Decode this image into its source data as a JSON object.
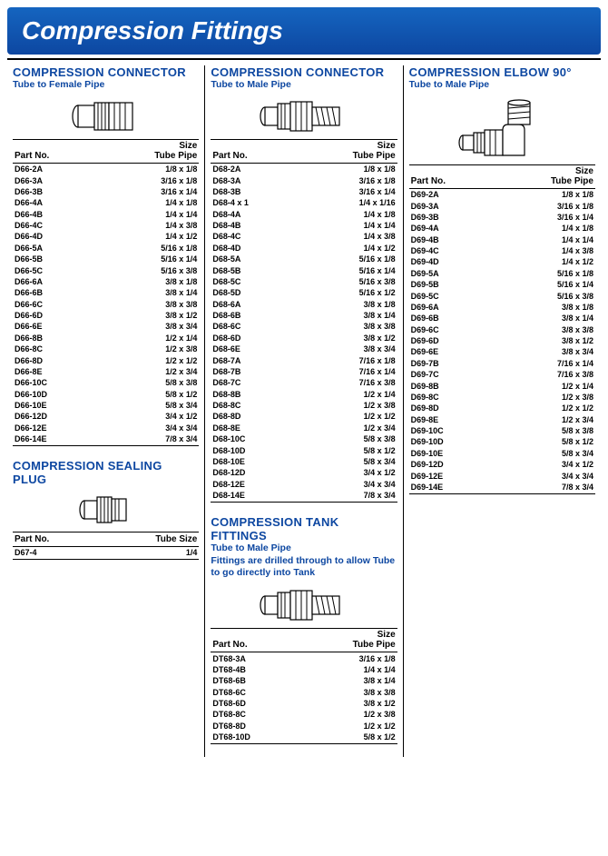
{
  "banner": "Compression Fittings",
  "colors": {
    "header_bg": "#0d47a1",
    "header_text": "#ffffff",
    "accent": "#0d47a1",
    "rule": "#000000"
  },
  "columns": [
    {
      "sections": [
        {
          "title": "COMPRESSION CONNECTOR",
          "subtitle": "Tube to Female Pipe",
          "illus": "female",
          "header_partno": "Part No.",
          "header_size": "Size\nTube Pipe",
          "rows": [
            [
              "D66-2A",
              "1/8 x 1/8"
            ],
            [
              "D66-3A",
              "3/16 x 1/8"
            ],
            [
              "D66-3B",
              "3/16 x 1/4"
            ],
            [
              "D66-4A",
              "1/4 x 1/8"
            ],
            [
              "D66-4B",
              "1/4 x 1/4"
            ],
            [
              "D66-4C",
              "1/4 x 3/8"
            ],
            [
              "D66-4D",
              "1/4 x 1/2"
            ],
            [
              "D66-5A",
              "5/16 x 1/8"
            ],
            [
              "D66-5B",
              "5/16 x 1/4"
            ],
            [
              "D66-5C",
              "5/16 x 3/8"
            ],
            [
              "D66-6A",
              "3/8 x 1/8"
            ],
            [
              "D66-6B",
              "3/8 x 1/4"
            ],
            [
              "D66-6C",
              "3/8 x 3/8"
            ],
            [
              "D66-6D",
              "3/8 x 1/2"
            ],
            [
              "D66-6E",
              "3/8 x 3/4"
            ],
            [
              "D66-8B",
              "1/2 x 1/4"
            ],
            [
              "D66-8C",
              "1/2 x 3/8"
            ],
            [
              "D66-8D",
              "1/2 x 1/2"
            ],
            [
              "D66-8E",
              "1/2 x 3/4"
            ],
            [
              "D66-10C",
              "5/8 x 3/8"
            ],
            [
              "D66-10D",
              "5/8 x 1/2"
            ],
            [
              "D66-10E",
              "5/8 x 3/4"
            ],
            [
              "D66-12D",
              "3/4 x 1/2"
            ],
            [
              "D66-12E",
              "3/4 x 3/4"
            ],
            [
              "D66-14E",
              "7/8 x 3/4"
            ]
          ]
        },
        {
          "title": "COMPRESSION SEALING PLUG",
          "subtitle": "",
          "illus": "plug",
          "header_partno": "Part No.",
          "header_size": "Tube Size",
          "rows": [
            [
              "D67-4",
              "1/4"
            ]
          ]
        }
      ]
    },
    {
      "sections": [
        {
          "title": "COMPRESSION CONNECTOR",
          "subtitle": "Tube to Male Pipe",
          "illus": "male",
          "header_partno": "Part No.",
          "header_size": "Size\nTube Pipe",
          "rows": [
            [
              "D68-2A",
              "1/8 x 1/8"
            ],
            [
              "D68-3A",
              "3/16 x 1/8"
            ],
            [
              "D68-3B",
              "3/16 x 1/4"
            ],
            [
              "D68-4 x 1",
              "1/4 x 1/16"
            ],
            [
              "D68-4A",
              "1/4 x 1/8"
            ],
            [
              "D68-4B",
              "1/4 x 1/4"
            ],
            [
              "D68-4C",
              "1/4 x 3/8"
            ],
            [
              "D68-4D",
              "1/4 x 1/2"
            ],
            [
              "D68-5A",
              "5/16 x 1/8"
            ],
            [
              "D68-5B",
              "5/16 x 1/4"
            ],
            [
              "D68-5C",
              "5/16 x 3/8"
            ],
            [
              "D68-5D",
              "5/16 x 1/2"
            ],
            [
              "D68-6A",
              "3/8 x 1/8"
            ],
            [
              "D68-6B",
              "3/8 x 1/4"
            ],
            [
              "D68-6C",
              "3/8 x 3/8"
            ],
            [
              "D68-6D",
              "3/8 x 1/2"
            ],
            [
              "D68-6E",
              "3/8 x 3/4"
            ],
            [
              "D68-7A",
              "7/16 x 1/8"
            ],
            [
              "D68-7B",
              "7/16 x 1/4"
            ],
            [
              "D68-7C",
              "7/16 x 3/8"
            ],
            [
              "D68-8B",
              "1/2 x 1/4"
            ],
            [
              "D68-8C",
              "1/2 x 3/8"
            ],
            [
              "D68-8D",
              "1/2 x 1/2"
            ],
            [
              "D68-8E",
              "1/2 x 3/4"
            ],
            [
              "D68-10C",
              "5/8 x 3/8"
            ],
            [
              "D68-10D",
              "5/8 x 1/2"
            ],
            [
              "D68-10E",
              "5/8 x 3/4"
            ],
            [
              "D68-12D",
              "3/4 x 1/2"
            ],
            [
              "D68-12E",
              "3/4 x 3/4"
            ],
            [
              "D68-14E",
              "7/8 x 3/4"
            ]
          ]
        },
        {
          "title": "COMPRESSION TANK FITTINGS",
          "subtitle": "Tube to Male Pipe",
          "note": "Fittings are drilled through to allow Tube to go directly into Tank",
          "illus": "male",
          "header_partno": "Part No.",
          "header_size": "Size\nTube Pipe",
          "rows": [
            [
              "DT68-3A",
              "3/16 x 1/8"
            ],
            [
              "DT68-4B",
              "1/4 x 1/4"
            ],
            [
              "DT68-6B",
              "3/8 x 1/4"
            ],
            [
              "DT68-6C",
              "3/8 x 3/8"
            ],
            [
              "DT68-6D",
              "3/8 x 1/2"
            ],
            [
              "DT68-8C",
              "1/2 x 3/8"
            ],
            [
              "DT68-8D",
              "1/2 x 1/2"
            ],
            [
              "DT68-10D",
              "5/8 x 1/2"
            ]
          ]
        }
      ]
    },
    {
      "sections": [
        {
          "title": "COMPRESSION ELBOW 90°",
          "subtitle": "Tube to Male Pipe",
          "illus": "elbow",
          "header_partno": "Part No.",
          "header_size": "Size\nTube Pipe",
          "rows": [
            [
              "D69-2A",
              "1/8 x 1/8"
            ],
            [
              "D69-3A",
              "3/16 x 1/8"
            ],
            [
              "D69-3B",
              "3/16 x 1/4"
            ],
            [
              "D69-4A",
              "1/4 x 1/8"
            ],
            [
              "D69-4B",
              "1/4 x 1/4"
            ],
            [
              "D69-4C",
              "1/4 x 3/8"
            ],
            [
              "D69-4D",
              "1/4 x 1/2"
            ],
            [
              "D69-5A",
              "5/16 x 1/8"
            ],
            [
              "D69-5B",
              "5/16 x 1/4"
            ],
            [
              "D69-5C",
              "5/16 x 3/8"
            ],
            [
              "D69-6A",
              "3/8 x 1/8"
            ],
            [
              "D69-6B",
              "3/8 x 1/4"
            ],
            [
              "D69-6C",
              "3/8 x 3/8"
            ],
            [
              "D69-6D",
              "3/8 x 1/2"
            ],
            [
              "D69-6E",
              "3/8 x 3/4"
            ],
            [
              "D69-7B",
              "7/16 x 1/4"
            ],
            [
              "D69-7C",
              "7/16 x 3/8"
            ],
            [
              "D69-8B",
              "1/2 x 1/4"
            ],
            [
              "D69-8C",
              "1/2 x 3/8"
            ],
            [
              "D69-8D",
              "1/2 x 1/2"
            ],
            [
              "D69-8E",
              "1/2 x 3/4"
            ],
            [
              "D69-10C",
              "5/8 x 3/8"
            ],
            [
              "D69-10D",
              "5/8 x 1/2"
            ],
            [
              "D69-10E",
              "5/8 x 3/4"
            ],
            [
              "D69-12D",
              "3/4 x 1/2"
            ],
            [
              "D69-12E",
              "3/4 x 3/4"
            ],
            [
              "D69-14E",
              "7/8 x 3/4"
            ]
          ]
        }
      ]
    }
  ]
}
